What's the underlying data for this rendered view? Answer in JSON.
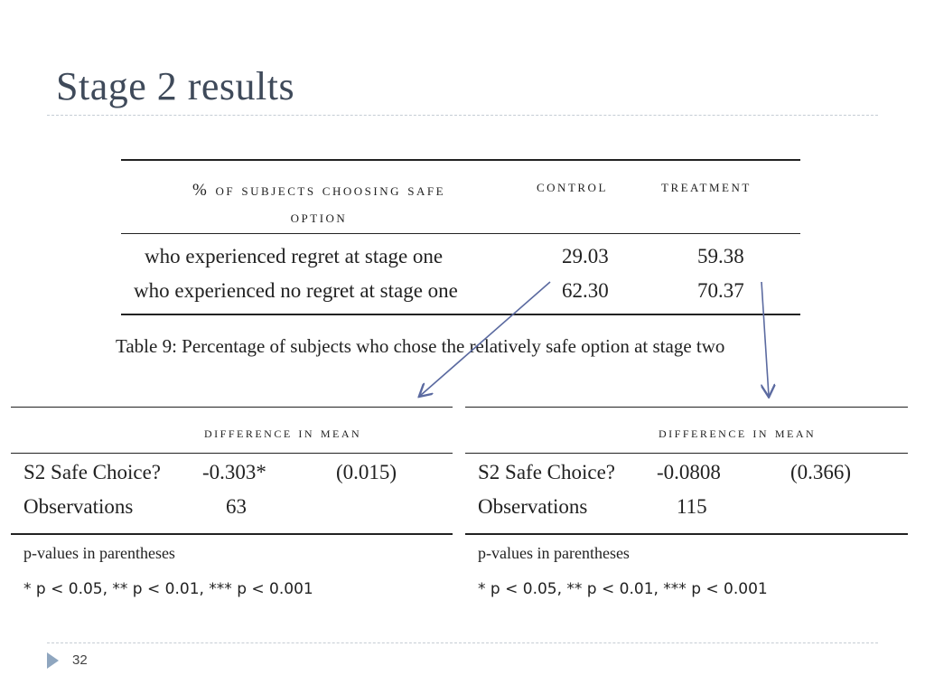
{
  "slide": {
    "title": "Stage 2 results",
    "page_number": "32"
  },
  "main_table": {
    "header_left_line1": "% of subjects choosing safe",
    "header_left_line2": "option",
    "header_control": "control",
    "header_treatment": "treatment",
    "rows": [
      {
        "label": "who experienced regret at stage one",
        "control": "29.03",
        "treatment": "59.38"
      },
      {
        "label": "who experienced no regret at stage one",
        "control": "62.30",
        "treatment": "70.37"
      }
    ],
    "caption": "Table 9: Percentage of subjects who chose the relatively safe option at stage two"
  },
  "left_table": {
    "header": "difference in mean",
    "row1_label": "S2 Safe Choice?",
    "row1_value": "-0.303*",
    "row1_p": "(0.015)",
    "row2_label": "Observations",
    "row2_value": "63",
    "note1": "p-values in parentheses",
    "note2": "* p < 0.05, ** p < 0.01, *** p < 0.001"
  },
  "right_table": {
    "header": "difference in mean",
    "row1_label": "S2 Safe Choice?",
    "row1_value": "-0.0808",
    "row1_p": "(0.366)",
    "row2_label": "Observations",
    "row2_value": "115",
    "note1": "p-values in parentheses",
    "note2": "* p < 0.05, ** p < 0.01, *** p < 0.001"
  },
  "colors": {
    "title": "#3f4a5a",
    "arrow": "#5b6aa0",
    "bullet": "#8fa6bf"
  }
}
